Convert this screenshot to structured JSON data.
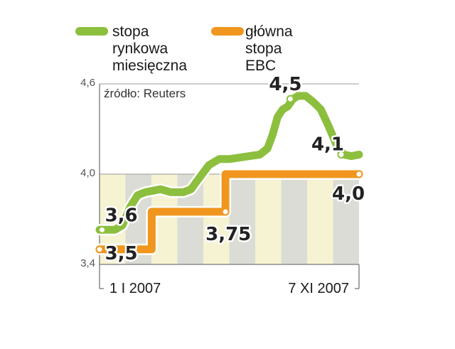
{
  "chart_data": {
    "type": "line",
    "title": "",
    "xlabel": "",
    "ylabel": "",
    "ylim": [
      3.4,
      4.6
    ],
    "yticks": [
      "4,6",
      "4,0",
      "3,4"
    ],
    "xticks": [
      {
        "label": "1 I 2007",
        "x": 0
      },
      {
        "label": "7 XI 2007",
        "x": 10.2
      }
    ],
    "xlim": [
      0,
      10.2
    ],
    "source": "źródło: Reuters",
    "legend_placement": "top",
    "series": [
      {
        "name": "stopa rynkowa miesięczna",
        "color": "#8dbf3f",
        "points": [
          [
            0,
            3.63
          ],
          [
            0.6,
            3.63
          ],
          [
            0.9,
            3.66
          ],
          [
            1.2,
            3.78
          ],
          [
            1.5,
            3.86
          ],
          [
            1.8,
            3.88
          ],
          [
            2.1,
            3.89
          ],
          [
            2.4,
            3.9
          ],
          [
            2.8,
            3.88
          ],
          [
            3.3,
            3.88
          ],
          [
            3.6,
            3.9
          ],
          [
            3.9,
            3.97
          ],
          [
            4.3,
            4.06
          ],
          [
            4.7,
            4.1
          ],
          [
            5.1,
            4.1
          ],
          [
            5.5,
            4.11
          ],
          [
            5.9,
            4.12
          ],
          [
            6.3,
            4.13
          ],
          [
            6.6,
            4.17
          ],
          [
            6.8,
            4.26
          ],
          [
            7.0,
            4.38
          ],
          [
            7.2,
            4.43
          ],
          [
            7.4,
            4.45
          ],
          [
            7.6,
            4.5
          ],
          [
            7.8,
            4.52
          ],
          [
            8.1,
            4.52
          ],
          [
            8.4,
            4.48
          ],
          [
            8.7,
            4.43
          ],
          [
            9.0,
            4.32
          ],
          [
            9.3,
            4.2
          ],
          [
            9.6,
            4.13
          ],
          [
            9.9,
            4.12
          ],
          [
            10.2,
            4.13
          ]
        ],
        "labels": [
          {
            "text": "3,6",
            "x": 0.1,
            "y": 3.63
          },
          {
            "text": "4,5",
            "x": 7.5,
            "y": 4.5
          },
          {
            "text": "4,1",
            "x": 9.5,
            "y": 4.13
          }
        ]
      },
      {
        "name": "główna stopa EBC",
        "color": "#f0961e",
        "points": [
          [
            0,
            3.5
          ],
          [
            2.05,
            3.5
          ],
          [
            2.05,
            3.75
          ],
          [
            4.95,
            3.75
          ],
          [
            4.95,
            4.0
          ],
          [
            10.2,
            4.0
          ]
        ],
        "markers": [
          [
            0,
            3.5
          ],
          [
            4.95,
            3.75
          ],
          [
            10.2,
            4.0
          ]
        ],
        "labels": [
          {
            "text": "3,5",
            "x": 0.1,
            "y": 3.5
          },
          {
            "text": "3,75",
            "x": 4.95,
            "y": 3.75
          },
          {
            "text": "4,0",
            "x": 10.2,
            "y": 4.0
          }
        ]
      }
    ]
  }
}
